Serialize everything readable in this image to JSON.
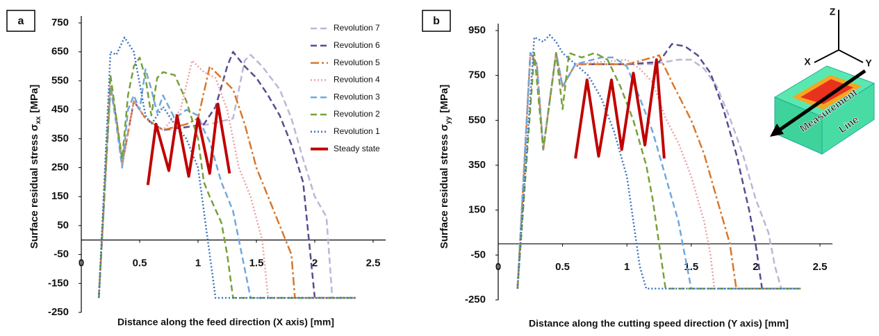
{
  "chart_data": [
    {
      "type": "line",
      "panel": "a",
      "xlabel": "Distance along the feed direction (X axis) [mm]",
      "ylabel": "Surface residual stress σ",
      "ylabel_sub": "xx",
      "ylabel_unit": "[MPa]",
      "xlim": [
        0,
        2.5
      ],
      "xticks": [
        0,
        0.5,
        1,
        1.5,
        2,
        2.5
      ],
      "ylim": [
        -250,
        750
      ],
      "yticks": [
        750,
        650,
        550,
        450,
        350,
        250,
        150,
        50,
        -50,
        -150,
        -250
      ],
      "legend": "upper right",
      "series": [
        {
          "name": "Revolution 7",
          "color": "#bcb6d8",
          "style": "dashed",
          "x": [
            0.15,
            0.25,
            0.3,
            0.35,
            0.45,
            0.55,
            0.7,
            0.9,
            1.1,
            1.3,
            1.4,
            1.45,
            1.55,
            1.7,
            1.8,
            1.9,
            2.0,
            2.1,
            2.15,
            2.35
          ],
          "values": [
            -200,
            530,
            420,
            260,
            480,
            420,
            380,
            390,
            400,
            420,
            620,
            640,
            600,
            520,
            420,
            280,
            150,
            80,
            -200,
            -200
          ]
        },
        {
          "name": "Revolution 6",
          "color": "#5a4a8e",
          "style": "dashed",
          "x": [
            0.15,
            0.25,
            0.3,
            0.35,
            0.45,
            0.55,
            0.7,
            0.9,
            1.05,
            1.15,
            1.25,
            1.3,
            1.4,
            1.5,
            1.6,
            1.7,
            1.8,
            1.9,
            1.95,
            2.0,
            2.35
          ],
          "values": [
            -200,
            530,
            420,
            260,
            480,
            420,
            380,
            390,
            400,
            460,
            600,
            650,
            600,
            560,
            500,
            430,
            330,
            200,
            0,
            -200,
            -200
          ]
        },
        {
          "name": "Revolution 5",
          "color": "#d9772b",
          "style": "dashdot",
          "x": [
            0.15,
            0.25,
            0.3,
            0.35,
            0.45,
            0.55,
            0.7,
            0.9,
            1.0,
            1.1,
            1.2,
            1.3,
            1.4,
            1.5,
            1.6,
            1.7,
            1.8,
            1.83,
            2.35
          ],
          "values": [
            -200,
            530,
            420,
            260,
            480,
            420,
            380,
            400,
            420,
            600,
            560,
            520,
            400,
            250,
            150,
            50,
            -50,
            -200,
            -200
          ]
        },
        {
          "name": "Revolution 4",
          "color": "#e8a0a0",
          "style": "dotted",
          "x": [
            0.15,
            0.25,
            0.3,
            0.35,
            0.45,
            0.55,
            0.7,
            0.85,
            0.95,
            1.05,
            1.15,
            1.25,
            1.35,
            1.45,
            1.55,
            1.6,
            2.35
          ],
          "values": [
            -200,
            530,
            420,
            260,
            480,
            420,
            380,
            450,
            620,
            580,
            560,
            450,
            250,
            150,
            0,
            -200,
            -200
          ]
        },
        {
          "name": "Revolution 3",
          "color": "#6fa8dc",
          "style": "dashed",
          "x": [
            0.15,
            0.25,
            0.3,
            0.35,
            0.4,
            0.45,
            0.5,
            0.55,
            0.6,
            0.65,
            0.7,
            0.8,
            0.9,
            1.0,
            1.05,
            1.1,
            1.2,
            1.3,
            1.35,
            1.45,
            2.35
          ],
          "values": [
            -200,
            530,
            400,
            250,
            450,
            500,
            450,
            590,
            520,
            440,
            500,
            420,
            450,
            430,
            380,
            340,
            200,
            100,
            0,
            -200,
            -200
          ]
        },
        {
          "name": "Revolution 2",
          "color": "#77a03a",
          "style": "dashed",
          "x": [
            0.15,
            0.25,
            0.3,
            0.35,
            0.4,
            0.45,
            0.5,
            0.55,
            0.6,
            0.65,
            0.7,
            0.8,
            0.9,
            1.0,
            1.05,
            1.1,
            1.2,
            1.25,
            1.3,
            2.35
          ],
          "values": [
            -200,
            570,
            420,
            280,
            500,
            600,
            630,
            560,
            430,
            560,
            580,
            570,
            480,
            350,
            200,
            150,
            60,
            -50,
            -200,
            -200
          ]
        },
        {
          "name": "Revolution 1",
          "color": "#3a6fbf",
          "style": "dotted",
          "x": [
            0.15,
            0.25,
            0.3,
            0.37,
            0.45,
            0.5,
            0.55,
            0.6,
            0.7,
            0.8,
            0.9,
            1.0,
            1.05,
            1.1,
            1.15,
            2.35
          ],
          "values": [
            -200,
            650,
            640,
            700,
            650,
            540,
            430,
            400,
            460,
            400,
            350,
            250,
            100,
            -50,
            -200,
            -200
          ]
        },
        {
          "name": "Steady state",
          "color": "#c00000",
          "style": "solid",
          "x": [
            0.57,
            0.64,
            0.75,
            0.82,
            0.92,
            1.0,
            1.1,
            1.17,
            1.27
          ],
          "values": [
            190,
            400,
            240,
            430,
            220,
            420,
            230,
            470,
            230
          ]
        }
      ]
    },
    {
      "type": "line",
      "panel": "b",
      "xlabel": "Distance along the cutting speed direction (Y axis) [mm]",
      "ylabel": "Surface residual stress σ",
      "ylabel_sub": "yy",
      "ylabel_unit": "[MPa]",
      "xlim": [
        0,
        2.5
      ],
      "xticks": [
        0,
        0.5,
        1,
        1.5,
        2,
        2.5
      ],
      "ylim": [
        -250,
        950
      ],
      "yticks": [
        950,
        750,
        550,
        350,
        150,
        -50,
        -250
      ],
      "inset_labels": [
        "Z",
        "X",
        "Y",
        "Measurement",
        "Line"
      ],
      "series": [
        {
          "name": "Revolution 7",
          "color": "#bcb6d8",
          "style": "dashed",
          "x": [
            0.15,
            0.25,
            0.3,
            0.35,
            0.45,
            0.5,
            0.6,
            0.8,
            1.0,
            1.2,
            1.4,
            1.5,
            1.6,
            1.7,
            1.8,
            1.9,
            2.0,
            2.1,
            2.15,
            2.2,
            2.35
          ],
          "values": [
            -200,
            850,
            800,
            420,
            850,
            700,
            800,
            800,
            800,
            800,
            820,
            820,
            780,
            700,
            560,
            400,
            200,
            50,
            -100,
            -200,
            -200
          ]
        },
        {
          "name": "Revolution 6",
          "color": "#5a4a8e",
          "style": "dashed",
          "x": [
            0.15,
            0.25,
            0.3,
            0.35,
            0.45,
            0.5,
            0.6,
            0.8,
            1.0,
            1.25,
            1.35,
            1.45,
            1.55,
            1.65,
            1.75,
            1.85,
            1.95,
            2.0,
            2.05,
            2.35
          ],
          "values": [
            -200,
            850,
            800,
            420,
            850,
            700,
            800,
            800,
            800,
            810,
            890,
            880,
            840,
            760,
            600,
            400,
            150,
            0,
            -200,
            -200
          ]
        },
        {
          "name": "Revolution 5",
          "color": "#d9772b",
          "style": "dashdot",
          "x": [
            0.15,
            0.25,
            0.3,
            0.35,
            0.45,
            0.5,
            0.6,
            0.8,
            1.0,
            1.2,
            1.25,
            1.35,
            1.5,
            1.6,
            1.7,
            1.8,
            1.85,
            2.35
          ],
          "values": [
            -200,
            850,
            800,
            420,
            850,
            700,
            800,
            800,
            800,
            830,
            840,
            720,
            550,
            400,
            200,
            0,
            -200,
            -200
          ]
        },
        {
          "name": "Revolution 4",
          "color": "#e8a0a0",
          "style": "dotted",
          "x": [
            0.15,
            0.25,
            0.3,
            0.35,
            0.45,
            0.5,
            0.6,
            0.8,
            1.0,
            1.1,
            1.2,
            1.3,
            1.4,
            1.5,
            1.6,
            1.65,
            1.68,
            2.35
          ],
          "values": [
            -200,
            850,
            800,
            420,
            850,
            700,
            800,
            810,
            820,
            780,
            720,
            560,
            450,
            300,
            100,
            -50,
            -200,
            -200
          ]
        },
        {
          "name": "Revolution 3",
          "color": "#6fa8dc",
          "style": "dashed",
          "x": [
            0.15,
            0.25,
            0.3,
            0.35,
            0.45,
            0.5,
            0.6,
            0.8,
            0.9,
            1.0,
            1.1,
            1.2,
            1.3,
            1.4,
            1.45,
            1.5,
            2.35
          ],
          "values": [
            -200,
            850,
            800,
            420,
            850,
            700,
            800,
            830,
            830,
            790,
            650,
            500,
            300,
            100,
            -50,
            -200,
            -200
          ]
        },
        {
          "name": "Revolution 2",
          "color": "#77a03a",
          "style": "dashed",
          "x": [
            0.15,
            0.28,
            0.35,
            0.45,
            0.5,
            0.55,
            0.65,
            0.75,
            0.85,
            0.95,
            1.05,
            1.15,
            1.2,
            1.25,
            1.3,
            2.35
          ],
          "values": [
            -200,
            850,
            420,
            850,
            600,
            850,
            830,
            850,
            820,
            700,
            550,
            350,
            200,
            0,
            -200,
            -200
          ]
        },
        {
          "name": "Revolution 1",
          "color": "#3a6fbf",
          "style": "dotted",
          "x": [
            0.15,
            0.28,
            0.35,
            0.4,
            0.45,
            0.5,
            0.6,
            0.7,
            0.8,
            0.9,
            1.0,
            1.05,
            1.1,
            1.15,
            2.35
          ],
          "values": [
            -200,
            920,
            900,
            930,
            900,
            850,
            800,
            750,
            650,
            500,
            300,
            100,
            -100,
            -200,
            -200
          ]
        },
        {
          "name": "Steady state",
          "color": "#c00000",
          "style": "solid",
          "x": [
            0.6,
            0.69,
            0.78,
            0.88,
            0.96,
            1.05,
            1.14,
            1.23,
            1.29
          ],
          "values": [
            380,
            730,
            390,
            730,
            420,
            760,
            440,
            820,
            380
          ]
        }
      ]
    }
  ]
}
